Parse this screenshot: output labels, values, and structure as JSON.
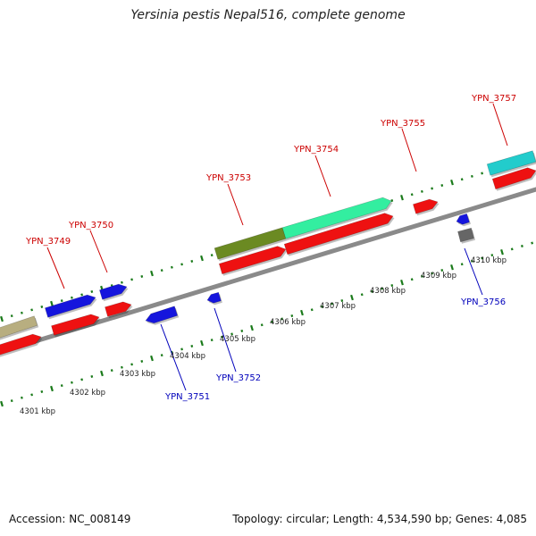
{
  "title": "Yersinia pestis Nepal516, complete genome",
  "footer": {
    "accession": "Accession: NC_008149",
    "topology": "Topology: circular; Length: 4,534,590 bp; Genes: 4,085"
  },
  "colors": {
    "backbone": "#8a8a8a",
    "tick": "#1a7a1a",
    "label_top": "#cc0000",
    "label_bottom": "#0000bb",
    "red": "#ee1111",
    "blue": "#1515dd",
    "khaki": "#b8ae80",
    "olive": "#6b8a22",
    "green": "#33eea0",
    "cyan": "#22cccc",
    "gray": "#666666"
  },
  "kbp_labels": [
    "4301 kbp",
    "4302 kbp",
    "4303 kbp",
    "4304 kbp",
    "4305 kbp",
    "4306 kbp",
    "4307 kbp",
    "4308 kbp",
    "4309 kbp",
    "4310 kbp"
  ],
  "gene_labels_top": [
    "YPN_3749",
    "YPN_3750",
    "YPN_3753",
    "YPN_3754",
    "YPN_3755",
    "YPN_3757"
  ],
  "gene_labels_bottom": [
    "YPN_3751",
    "YPN_3752",
    "YPN_3756"
  ],
  "features": [
    {
      "name": "khaki-feature",
      "color": "khaki",
      "arrow": false
    },
    {
      "name": "red-feature",
      "color": "red",
      "arrow": true
    },
    {
      "name": "blue-feature",
      "color": "blue",
      "arrow": true
    },
    {
      "name": "olive-feature",
      "color": "olive",
      "arrow": false
    },
    {
      "name": "green-feature",
      "color": "green",
      "arrow": true
    },
    {
      "name": "cyan-feature",
      "color": "cyan",
      "arrow": false
    },
    {
      "name": "gray-feature",
      "color": "gray",
      "arrow": false
    }
  ]
}
